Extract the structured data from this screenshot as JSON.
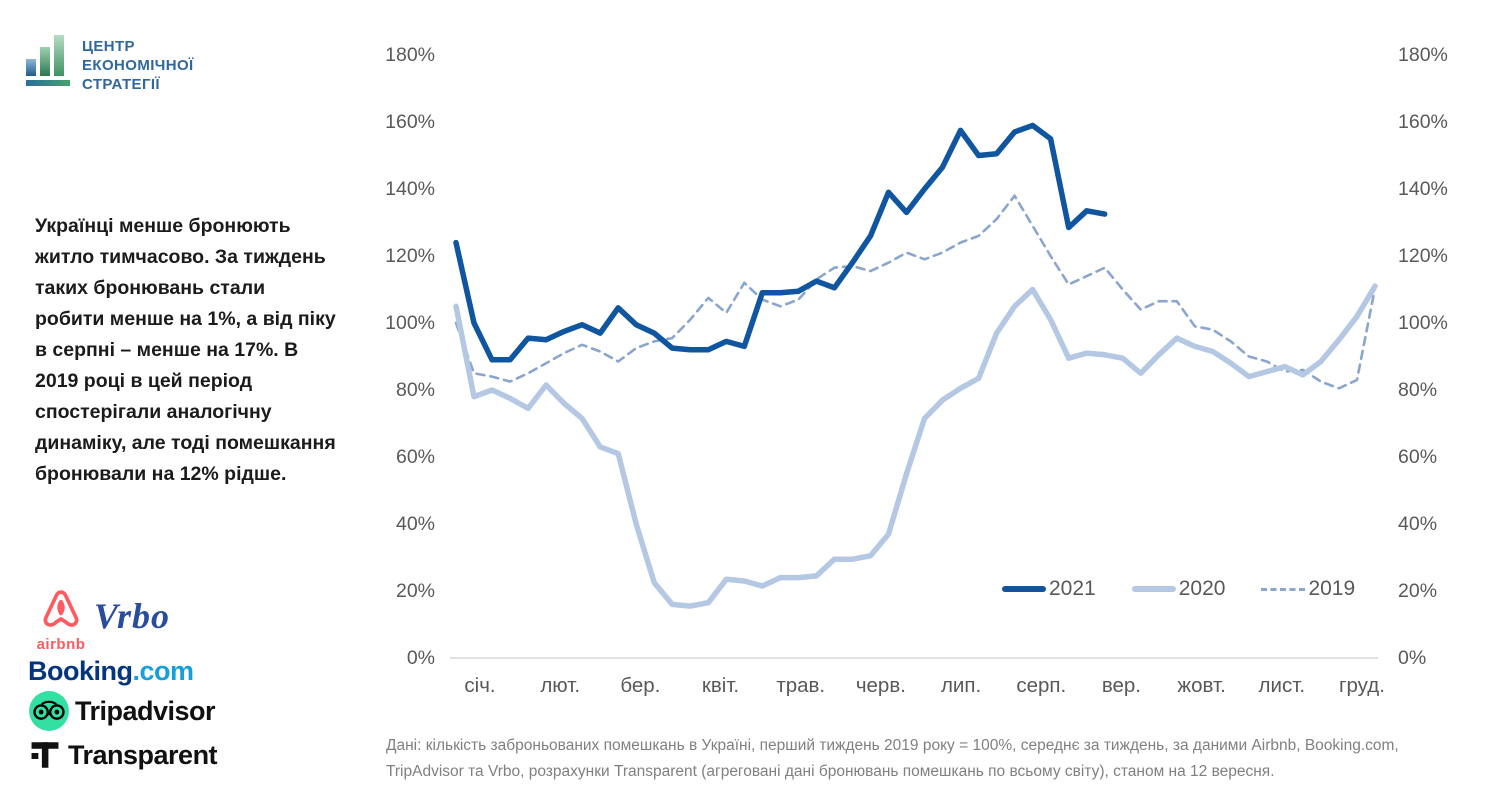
{
  "header_logo": {
    "lines": [
      "ЦЕНТР",
      "ЕКОНОМІЧНОЇ",
      "СТРАТЕГІЇ"
    ]
  },
  "annotation": {
    "text": "Українці менше бронюють житло тимчасово. За тиждень таких бронювань стали робити менше на 1%, а від піку в серпні – менше на 17%. В 2019 році в цей період спостерігали аналогічну динаміку, але тоді помешкання бронювали на 12% рідше."
  },
  "partners": {
    "airbnb": "airbnb",
    "vrbo": "Vrbo",
    "booking_name": "Booking",
    "booking_tld": ".com",
    "tripadvisor": "Tripadvisor",
    "transparent": "Transparent"
  },
  "chart_data": {
    "type": "line",
    "title": "",
    "xlabel": "",
    "ylabel": "",
    "x_unit": "тиждень року (weekly points)",
    "ylim": [
      0,
      180
    ],
    "grid": false,
    "y_ticks": [
      "180%",
      "160%",
      "140%",
      "120%",
      "100%",
      "80%",
      "60%",
      "40%",
      "20%",
      "0%"
    ],
    "months": [
      "січ.",
      "лют.",
      "бер.",
      "квіт.",
      "трав.",
      "черв.",
      "лип.",
      "серп.",
      "вер.",
      "жовт.",
      "лист.",
      "груд."
    ],
    "legend_position": "bottom-right-inside",
    "legend": [
      {
        "label": "2021",
        "color": "#10559f",
        "dash": false,
        "width": 5.5
      },
      {
        "label": "2020",
        "color": "#b4c8e4",
        "dash": false,
        "width": 5.5
      },
      {
        "label": "2019",
        "color": "#8ba6ce",
        "dash": true,
        "width": 2.6
      }
    ],
    "series": [
      {
        "name": "2019",
        "color": "#8ba6ce",
        "dash": true,
        "width": 2.6,
        "values": [
          100,
          85,
          84,
          82.5,
          85,
          88,
          91,
          93.5,
          91.5,
          88.5,
          92.5,
          94.5,
          95.5,
          101,
          107.5,
          103,
          112,
          107,
          105,
          107,
          113,
          116.5,
          117,
          115.5,
          118,
          121,
          119,
          121,
          124,
          126,
          131,
          138,
          129,
          120,
          111.5,
          114,
          116.5,
          110,
          104,
          106.5,
          106.5,
          99,
          98,
          94.5,
          90,
          88.5,
          85.5,
          86,
          82.5,
          80.5,
          83,
          110.5
        ]
      },
      {
        "name": "2020",
        "color": "#b4c8e4",
        "dash": false,
        "width": 5.5,
        "values": [
          105,
          78,
          80,
          77.5,
          74.5,
          81.5,
          76,
          71.5,
          63,
          61,
          40,
          22.5,
          16,
          15.5,
          16.5,
          23.5,
          23,
          21.5,
          24,
          24,
          24.5,
          29.5,
          29.5,
          30.5,
          37,
          55,
          71.5,
          77,
          80.5,
          83.5,
          97,
          105,
          110,
          101,
          89.5,
          91,
          90.5,
          89.5,
          85,
          90.5,
          95.5,
          93,
          91.5,
          88,
          84,
          85.5,
          87,
          84.5,
          88.5,
          95,
          102,
          111
        ]
      },
      {
        "name": "2021",
        "color": "#10559f",
        "dash": false,
        "width": 5.5,
        "values": [
          124,
          100,
          89,
          89,
          95.5,
          95,
          97.5,
          99.5,
          97,
          104.5,
          99.5,
          97,
          92.5,
          92,
          92,
          94.5,
          93,
          109,
          109,
          109.5,
          112.5,
          110.5,
          118,
          126,
          139,
          133,
          140,
          146.5,
          157.5,
          150,
          150.5,
          157,
          159,
          155,
          128.5,
          133.5,
          132.5
        ]
      }
    ]
  },
  "source": {
    "text": "Дані: кількість заброньованих помешкань в Україні, перший тиждень 2019 року = 100%, середнє за тиждень, за даними Airbnb, Booking.com, TripAdvisor та Vrbo, розрахунки Transparent (агреговані дані бронювань помешкань по всьому світу), станом на 12 вересня."
  }
}
